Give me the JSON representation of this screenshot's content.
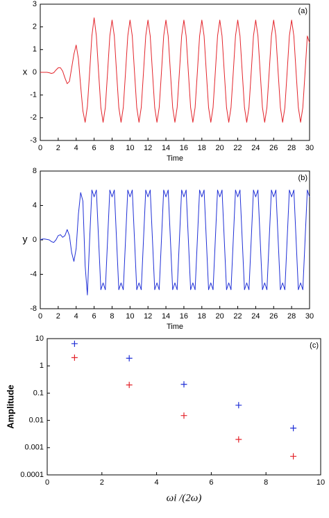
{
  "chart_data": [
    {
      "type": "line",
      "xlabel": "Time",
      "ylabel": "x",
      "annotation": "(a)",
      "xlim": [
        0,
        30
      ],
      "xticks": [
        0,
        2,
        4,
        6,
        8,
        10,
        12,
        14,
        16,
        18,
        20,
        22,
        24,
        26,
        28,
        30
      ],
      "ylim": [
        -3,
        3
      ],
      "yticks": [
        -3,
        -2,
        -1,
        0,
        1,
        2,
        3
      ],
      "grid": false,
      "x": [
        0,
        0.25,
        0.5,
        0.75,
        1,
        1.25,
        1.5,
        1.75,
        2,
        2.25,
        2.5,
        2.75,
        3,
        3.25,
        3.5,
        3.75,
        4,
        4.25,
        4.5,
        4.75,
        5,
        5.25,
        5.5,
        5.75,
        6,
        6.25,
        6.5,
        6.75,
        7,
        7.25,
        7.5,
        7.75,
        8,
        8.25,
        8.5,
        8.75,
        9,
        9.25,
        9.5,
        9.75,
        10,
        10.25,
        10.5,
        10.75,
        11,
        11.25,
        11.5,
        11.75,
        12,
        12.25,
        12.5,
        12.75,
        13,
        13.25,
        13.5,
        13.75,
        14,
        14.25,
        14.5,
        14.75,
        15,
        15.25,
        15.5,
        15.75,
        16,
        16.25,
        16.5,
        16.75,
        17,
        17.25,
        17.5,
        17.75,
        18,
        18.25,
        18.5,
        18.75,
        19,
        19.25,
        19.5,
        19.75,
        20,
        20.25,
        20.5,
        20.75,
        21,
        21.25,
        21.5,
        21.75,
        22,
        22.25,
        22.5,
        22.75,
        23,
        23.25,
        23.5,
        23.75,
        24,
        24.25,
        24.5,
        24.75,
        25,
        25.25,
        25.5,
        25.75,
        26,
        26.25,
        26.5,
        26.75,
        27,
        27.25,
        27.5,
        27.75,
        28,
        28.25,
        28.5,
        28.75,
        29,
        29.25,
        29.5,
        29.75,
        30
      ],
      "series": [
        {
          "color": "#e3242b",
          "values": [
            0,
            0,
            0,
            0,
            -0.02,
            -0.05,
            -0.02,
            0.1,
            0.2,
            0.2,
            0.05,
            -0.25,
            -0.5,
            -0.4,
            0.2,
            0.8,
            1.2,
            0.6,
            -0.6,
            -1.7,
            -2.2,
            -1.5,
            0,
            1.6,
            2.4,
            1.6,
            0,
            -1.55,
            -2.2,
            -1.55,
            0,
            1.6,
            2.3,
            1.6,
            0,
            -1.55,
            -2.2,
            -1.55,
            0,
            1.6,
            2.3,
            1.6,
            0,
            -1.55,
            -2.2,
            -1.55,
            0,
            1.6,
            2.3,
            1.6,
            0,
            -1.55,
            -2.2,
            -1.55,
            0,
            1.6,
            2.3,
            1.6,
            0,
            -1.55,
            -2.2,
            -1.55,
            0,
            1.6,
            2.3,
            1.6,
            0,
            -1.55,
            -2.2,
            -1.55,
            0,
            1.6,
            2.3,
            1.6,
            0,
            -1.55,
            -2.2,
            -1.55,
            0,
            1.6,
            2.3,
            1.6,
            0,
            -1.55,
            -2.2,
            -1.55,
            0,
            1.6,
            2.3,
            1.6,
            0,
            -1.55,
            -2.2,
            -1.55,
            0,
            1.6,
            2.3,
            1.6,
            0,
            -1.55,
            -2.2,
            -1.55,
            0,
            1.6,
            2.3,
            1.6,
            0,
            -1.55,
            -2.2,
            -1.55,
            0,
            1.6,
            2.3,
            1.6,
            0,
            -1.55,
            -2.2,
            -1.55,
            0,
            1.6,
            1.3
          ]
        }
      ]
    },
    {
      "type": "line",
      "xlabel": "Time",
      "ylabel": "y",
      "annotation": "(b)",
      "xlim": [
        0,
        30
      ],
      "xticks": [
        0,
        2,
        4,
        6,
        8,
        10,
        12,
        14,
        16,
        18,
        20,
        22,
        24,
        26,
        28,
        30
      ],
      "ylim": [
        -8,
        8
      ],
      "yticks": [
        -8,
        -4,
        0,
        4,
        8
      ],
      "grid": false,
      "x": [
        0,
        0.25,
        0.5,
        0.75,
        1,
        1.25,
        1.5,
        1.75,
        2,
        2.25,
        2.5,
        2.75,
        3,
        3.25,
        3.5,
        3.75,
        4,
        4.25,
        4.5,
        4.75,
        5,
        5.25,
        5.5,
        5.75,
        6,
        6.25,
        6.5,
        6.75,
        7,
        7.25,
        7.5,
        7.75,
        8,
        8.25,
        8.5,
        8.75,
        9,
        9.25,
        9.5,
        9.75,
        10,
        10.25,
        10.5,
        10.75,
        11,
        11.25,
        11.5,
        11.75,
        12,
        12.25,
        12.5,
        12.75,
        13,
        13.25,
        13.5,
        13.75,
        14,
        14.25,
        14.5,
        14.75,
        15,
        15.25,
        15.5,
        15.75,
        16,
        16.25,
        16.5,
        16.75,
        17,
        17.25,
        17.5,
        17.75,
        18,
        18.25,
        18.5,
        18.75,
        19,
        19.25,
        19.5,
        19.75,
        20,
        20.25,
        20.5,
        20.75,
        21,
        21.25,
        21.5,
        21.75,
        22,
        22.25,
        22.5,
        22.75,
        23,
        23.25,
        23.5,
        23.75,
        24,
        24.25,
        24.5,
        24.75,
        25,
        25.25,
        25.5,
        25.75,
        26,
        26.25,
        26.5,
        26.75,
        27,
        27.25,
        27.5,
        27.75,
        28,
        28.25,
        28.5,
        28.75,
        29,
        29.25,
        29.5,
        29.75,
        30
      ],
      "series": [
        {
          "color": "#1f2fd6",
          "values": [
            0,
            0.1,
            0.1,
            0.05,
            0,
            -0.2,
            -0.3,
            0,
            0.5,
            0.6,
            0.3,
            0.5,
            1.2,
            0.5,
            -1.5,
            -2.5,
            -1,
            3,
            5.5,
            4.5,
            -3,
            -6.4,
            0,
            5.8,
            5,
            5.8,
            0,
            -5.8,
            -5,
            -5.8,
            0,
            5.8,
            5,
            5.8,
            0,
            -5.8,
            -5,
            -5.8,
            0,
            5.8,
            5,
            5.8,
            0,
            -5.8,
            -5,
            -5.8,
            0,
            5.8,
            5,
            5.8,
            0,
            -5.8,
            -5,
            -5.8,
            0,
            5.8,
            5,
            5.8,
            0,
            -5.8,
            -5,
            -5.8,
            0,
            5.8,
            5,
            5.8,
            0,
            -5.8,
            -5,
            -5.8,
            0,
            5.8,
            5,
            5.8,
            0,
            -5.8,
            -5,
            -5.8,
            0,
            5.8,
            5,
            5.8,
            0,
            -5.8,
            -5,
            -5.8,
            0,
            5.8,
            5,
            5.8,
            0,
            -5.8,
            -5,
            -5.8,
            0,
            5.8,
            5,
            5.8,
            0,
            -5.8,
            -5,
            -5.8,
            0,
            5.8,
            5,
            5.8,
            0,
            -5.8,
            -5,
            -5.8,
            0,
            5.8,
            5,
            5.8,
            0,
            -5.8,
            -5,
            -5.8,
            0,
            5.8,
            5
          ]
        }
      ]
    },
    {
      "type": "scatter",
      "xlabel": "ωi /(2ω)",
      "ylabel": "Amplitude",
      "annotation": "(c)",
      "xlim": [
        0,
        10
      ],
      "xticks": [
        0,
        2,
        4,
        6,
        8,
        10
      ],
      "ylim": [
        0.0001,
        10
      ],
      "yticks": [
        0.0001,
        0.001,
        0.01,
        0.1,
        1,
        10
      ],
      "log_y": true,
      "grid": false,
      "x": [
        1,
        3,
        5,
        7,
        9
      ],
      "series": [
        {
          "color": "#1f2fd6",
          "values": [
            6.5,
            1.9,
            0.21,
            0.036,
            0.0052
          ]
        },
        {
          "color": "#e3242b",
          "values": [
            2.0,
            0.2,
            0.015,
            0.002,
            0.00048
          ]
        }
      ]
    }
  ]
}
